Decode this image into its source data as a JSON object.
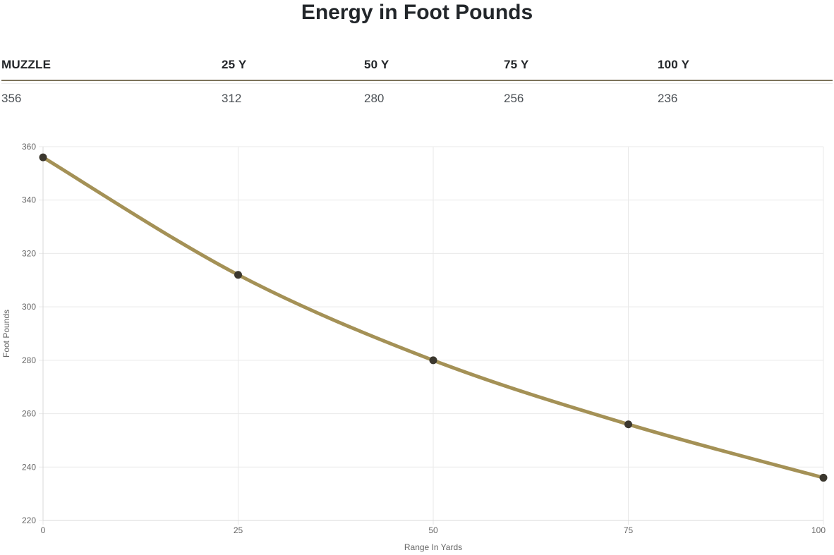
{
  "title": "Energy in Foot Pounds",
  "table": {
    "headers": [
      "MUZZLE",
      "25 Y",
      "50 Y",
      "75 Y",
      "100 Y"
    ],
    "values": [
      "356",
      "312",
      "280",
      "256",
      "236"
    ]
  },
  "chart_data": {
    "type": "line",
    "title": "Energy in Foot Pounds",
    "x": [
      0,
      25,
      50,
      75,
      100
    ],
    "series": [
      {
        "name": "Energy in Foot Pounds",
        "values": [
          356,
          312,
          280,
          256,
          236
        ]
      }
    ],
    "xlabel": "Range In Yards",
    "ylabel": "Foot Pounds",
    "xlim": [
      0,
      100
    ],
    "ylim": [
      220,
      360
    ],
    "xticks": [
      0,
      25,
      50,
      75,
      100
    ],
    "yticks": [
      220,
      240,
      260,
      280,
      300,
      320,
      340,
      360
    ],
    "grid": true,
    "legend": false,
    "line_style": "smooth",
    "colors": {
      "line": "#a49156",
      "marker": "#3b372e",
      "grid": "#e9e9e9",
      "axis": "#d8d8d8",
      "tick_label": "#666666",
      "axis_title": "#666666",
      "header_rule": "#7d745c"
    }
  }
}
